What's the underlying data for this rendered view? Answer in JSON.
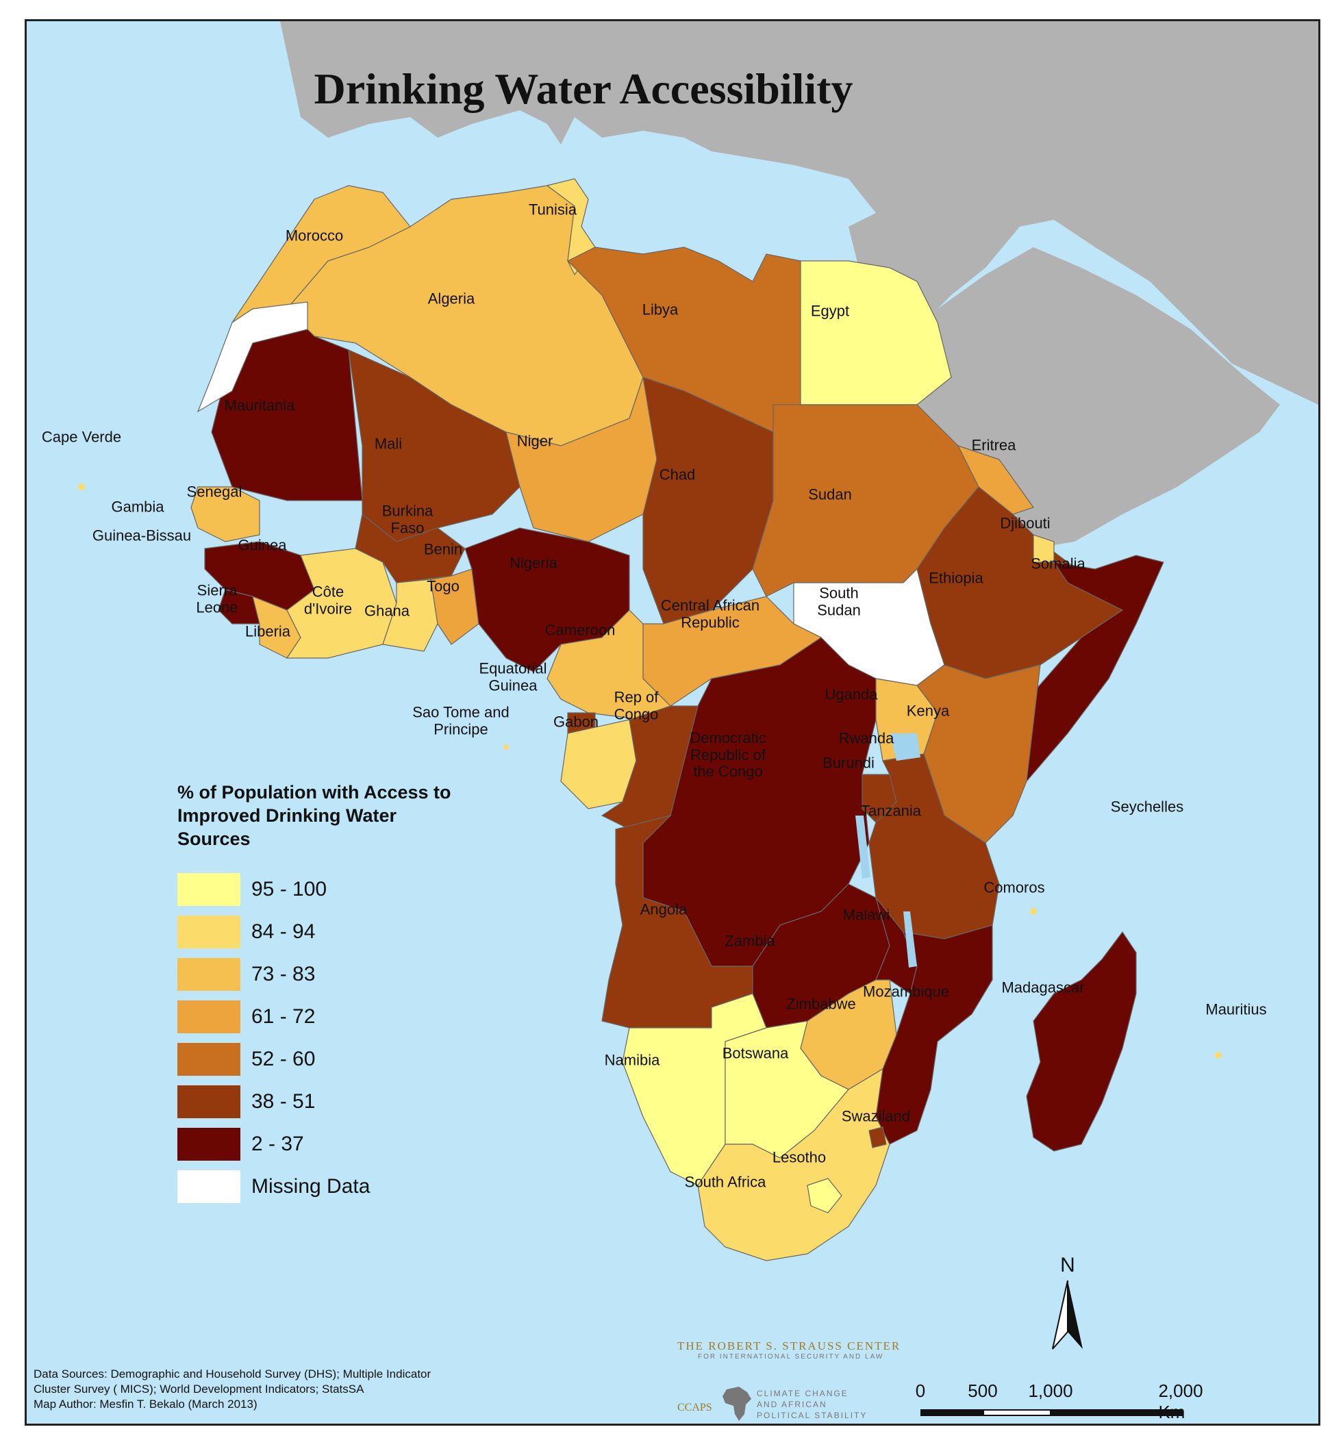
{
  "title": "Drinking Water Accessibility",
  "colors": {
    "ocean": "#bfe6f8",
    "other_land": "#b2b2b2",
    "c95_100": "#ffff8c",
    "c84_94": "#fbdc6a",
    "c73_83": "#f6c050",
    "c61_72": "#eea43c",
    "c52_60": "#c8701f",
    "c38_51": "#93390d",
    "c2_37": "#6b0703",
    "missing": "#ffffff"
  },
  "legend": {
    "title": "% of Population with Access to Improved Drinking Water Sources",
    "items": [
      {
        "label": "95 - 100",
        "color": "#ffff8c"
      },
      {
        "label": "84 - 94",
        "color": "#fbdc6a"
      },
      {
        "label": "73 - 83",
        "color": "#f6c050"
      },
      {
        "label": "61 - 72",
        "color": "#eea43c"
      },
      {
        "label": "52 - 60",
        "color": "#c8701f"
      },
      {
        "label": "38 - 51",
        "color": "#93390d"
      },
      {
        "label": "2 - 37",
        "color": "#6b0703"
      },
      {
        "label": "Missing Data",
        "color": "#ffffff"
      }
    ]
  },
  "labels": {
    "tunisia": "Tunisia",
    "morocco": "Morocco",
    "algeria": "Algeria",
    "libya": "Libya",
    "egypt": "Egypt",
    "mauritania": "Mauritania",
    "cape_verde": "Cape Verde",
    "mali": "Mali",
    "niger": "Niger",
    "eritrea": "Eritrea",
    "chad": "Chad",
    "senegal": "Senegal",
    "gambia": "Gambia",
    "sudan": "Sudan",
    "burkina_faso": "Burkina Faso",
    "djibouti": "Djibouti",
    "guinea_bissau": "Guinea-Bissau",
    "guinea": "Guinea",
    "benin": "Benin",
    "nigeria": "Nigeria",
    "somalia": "Somalia",
    "sierra_leone": "Sierra Leone",
    "togo": "Togo",
    "ethiopia": "Ethiopia",
    "south_sudan": "South Sudan",
    "cote_divoire": "Côte d'Ivoire",
    "ghana": "Ghana",
    "car": "Central African Republic",
    "liberia": "Liberia",
    "cameroon": "Cameroon",
    "equatorial_guinea": "Equatorial Guinea",
    "uganda": "Uganda",
    "rep_congo": "Rep of Congo",
    "sao_tome": "Sao Tome and Principe",
    "kenya": "Kenya",
    "gabon": "Gabon",
    "drc": "Democratic Republic of the Congo",
    "rwanda": "Rwanda",
    "burundi": "Burundi",
    "seychelles": "Seychelles",
    "tanzania": "Tanzania",
    "comoros": "Comoros",
    "angola": "Angola",
    "malawi": "Malawi",
    "zambia": "Zambia",
    "madagascar": "Madagascar",
    "mozambique": "Mozambique",
    "mauritius": "Mauritius",
    "zimbabwe": "Zimbabwe",
    "namibia": "Namibia",
    "botswana": "Botswana",
    "swaziland": "Swaziland",
    "lesotho": "Lesotho",
    "south_africa": "South Africa"
  },
  "north_arrow": {
    "letter": "N"
  },
  "scale_bar": {
    "ticks": [
      "0",
      "500",
      "1,000",
      "2,000 Km"
    ]
  },
  "sources": {
    "line1": "Data Sources: Demographic and Household Survey (DHS); Multiple Indicator",
    "line2": "Cluster Survey ( MICS); World Development Indicators; StatsSA",
    "line3": "Map Author: Mesfin T. Bekalo (March 2013)"
  },
  "credits": {
    "strauss_line1": "THE ROBERT S. STRAUSS CENTER",
    "strauss_line2": "FOR INTERNATIONAL SECURITY AND LAW",
    "ccaps_abbr": "CCAPS",
    "ccaps_line1": "CLIMATE CHANGE",
    "ccaps_line2": "AND AFRICAN",
    "ccaps_line3": "POLITICAL STABILITY"
  }
}
